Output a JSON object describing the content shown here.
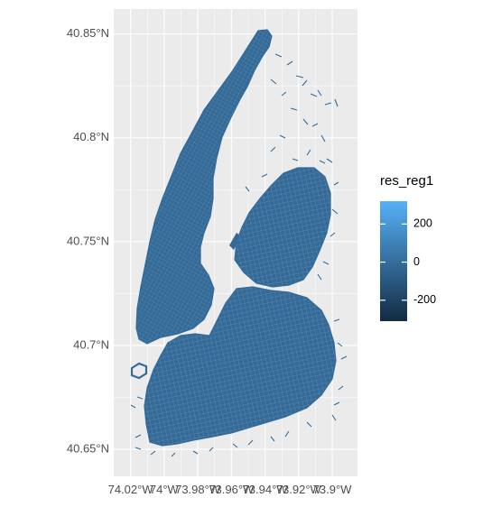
{
  "map": {
    "y_axis": {
      "tick_labels": [
        "40.85°N",
        "40.8°N",
        "40.75°N",
        "40.7°N",
        "40.65°N"
      ],
      "values": [
        40.85,
        40.8,
        40.75,
        40.7,
        40.65
      ],
      "range": [
        40.637,
        40.862
      ]
    },
    "x_axis": {
      "tick_labels": [
        "74.02°W",
        "74°W",
        "73.98°W",
        "73.96°W",
        "73.94°W",
        "73.92°W",
        "73.9°W"
      ],
      "values": [
        -74.02,
        -74.0,
        -73.98,
        -73.96,
        -73.94,
        -73.92,
        -73.9
      ],
      "range": [
        -74.03,
        -73.885
      ]
    },
    "legend": {
      "title": "res_reg1",
      "labels": [
        "200",
        "0",
        "-200"
      ],
      "values": [
        200,
        0,
        -200
      ],
      "range": [
        -310,
        320
      ],
      "colors": {
        "high": "#56B1F7",
        "low": "#132B43"
      }
    },
    "colors": {
      "panel_background": "#EBEBEB",
      "gridline": "#FFFFFF",
      "street": "#336A98"
    }
  }
}
